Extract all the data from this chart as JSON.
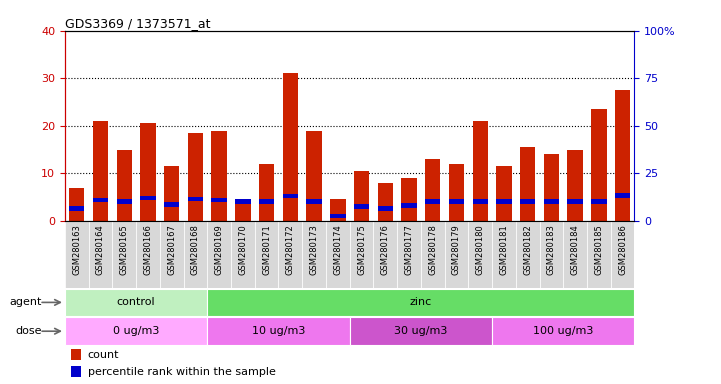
{
  "title": "GDS3369 / 1373571_at",
  "samples": [
    "GSM280163",
    "GSM280164",
    "GSM280165",
    "GSM280166",
    "GSM280167",
    "GSM280168",
    "GSM280169",
    "GSM280170",
    "GSM280171",
    "GSM280172",
    "GSM280173",
    "GSM280174",
    "GSM280175",
    "GSM280176",
    "GSM280177",
    "GSM280178",
    "GSM280179",
    "GSM280180",
    "GSM280181",
    "GSM280182",
    "GSM280183",
    "GSM280184",
    "GSM280185",
    "GSM280186"
  ],
  "count_values": [
    7,
    21,
    15,
    20.5,
    11.5,
    18.5,
    19,
    4,
    12,
    31,
    19,
    4.5,
    10.5,
    8,
    9,
    13,
    12,
    21,
    11.5,
    15.5,
    14,
    15,
    23.5,
    27.5
  ],
  "percentile_values": [
    6.5,
    11,
    10,
    12,
    8.5,
    11.5,
    11,
    10,
    10,
    13,
    10,
    2.5,
    7.5,
    6.5,
    8,
    10,
    10,
    10,
    10,
    10,
    10,
    10,
    10,
    13.5
  ],
  "left_yaxis_color": "#cc0000",
  "right_yaxis_color": "#0000cc",
  "left_ylim": [
    0,
    40
  ],
  "right_ylim": [
    0,
    100
  ],
  "left_yticks": [
    0,
    10,
    20,
    30,
    40
  ],
  "right_yticks": [
    0,
    25,
    50,
    75,
    100
  ],
  "right_yticklabels": [
    "0",
    "25",
    "50",
    "75",
    "100%"
  ],
  "bar_color": "#cc2200",
  "percentile_color": "#0000cc",
  "bg_color": "#ffffff",
  "tick_label_bg": "#d8d8d8",
  "agent_colors": [
    "#c0f0c0",
    "#66dd66"
  ],
  "dose_colors": [
    "#ffaaff",
    "#ee77ee",
    "#cc55cc",
    "#ee77ee"
  ],
  "agent_groups": [
    {
      "text": "control",
      "start": 0,
      "end": 6
    },
    {
      "text": "zinc",
      "start": 6,
      "end": 24
    }
  ],
  "dose_groups": [
    {
      "text": "0 ug/m3",
      "start": 0,
      "end": 6
    },
    {
      "text": "10 ug/m3",
      "start": 6,
      "end": 12
    },
    {
      "text": "30 ug/m3",
      "start": 12,
      "end": 18
    },
    {
      "text": "100 ug/m3",
      "start": 18,
      "end": 24
    }
  ],
  "legend_items": [
    {
      "label": "count",
      "color": "#cc2200"
    },
    {
      "label": "percentile rank within the sample",
      "color": "#0000cc"
    }
  ]
}
